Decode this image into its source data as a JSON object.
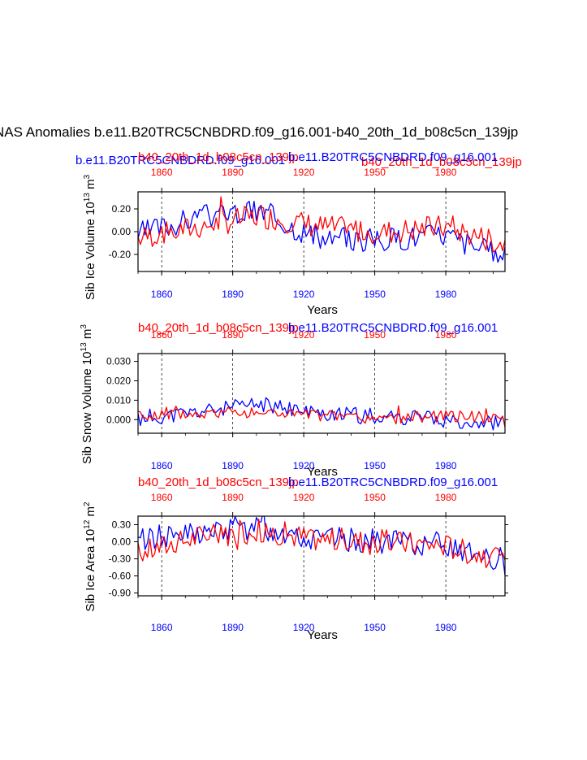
{
  "page": {
    "title": "NAS Anomalies b.e11.B20TRC5CNBDRD.f09_g16.001-b40_20th_1d_b08c5cn_139jp"
  },
  "colors": {
    "blue": "#0000ff",
    "red": "#ff0000"
  },
  "chart_data": [
    {
      "type": "line",
      "id": "ice-volume",
      "title_blue": "b.e11.B20TRC5CNBDRD.f09_g16.001",
      "title_red": "b40_20th_1d_b08c5cn_139jp",
      "top_title_red": "b40_20th_1d_b08c5cn_139jp",
      "top_title_blue": "b.e11.B20TRC5CNBDRD.f09_g16.001",
      "ylabel": "Sib Ice Volume 10^13 m^3",
      "ylabel_base": "Sib Ice Volume 10",
      "ylabel_exp": "13",
      "ylabel_unit": "m",
      "ylabel_unit_exp": "3",
      "xlabel": "Years",
      "xlim": [
        1850,
        2005
      ],
      "ylim": [
        -0.35,
        0.35
      ],
      "yticks": [
        -0.2,
        0.0,
        0.2
      ],
      "ytick_labels": [
        "-0.20",
        "0.00",
        "0.20"
      ],
      "xticks": [
        1860,
        1890,
        1920,
        1950,
        1980
      ],
      "xtick_labels": [
        "1860",
        "1890",
        "1920",
        "1950",
        "1980"
      ],
      "series": [
        {
          "name": "b.e11.B20TRC5CNBDRD.f09_g16.001",
          "color": "blue",
          "x_start": 1850,
          "amp": 0.11,
          "offset": -0.02,
          "seed": 3,
          "trend": [
            0.0,
            0.15,
            0.2,
            -0.05,
            -0.05,
            0.0,
            -0.22
          ]
        },
        {
          "name": "b40_20th_1d_b08c5cn_139jp",
          "color": "red",
          "x_start": 1850,
          "amp": 0.11,
          "offset": -0.01,
          "seed": 7,
          "trend": [
            -0.05,
            0.05,
            0.15,
            0.05,
            0.0,
            0.05,
            -0.1
          ]
        }
      ]
    },
    {
      "type": "line",
      "id": "snow-volume",
      "top_title_red": "b40_20th_1d_b08c5cn_139jp",
      "top_title_blue": "b.e11.B20TRC5CNBDRD.f09_g16.001",
      "ylabel": "Sib Snow Volume 10^13 m^3",
      "ylabel_base": "Sib Snow Volume 10",
      "ylabel_exp": "13",
      "ylabel_unit": "m",
      "ylabel_unit_exp": "3",
      "xlabel": "Years",
      "xlim": [
        1850,
        2005
      ],
      "ylim": [
        -0.007,
        0.034
      ],
      "yticks": [
        0.0,
        0.01,
        0.02,
        0.03
      ],
      "ytick_labels": [
        "0.000",
        "0.010",
        "0.020",
        "0.030"
      ],
      "xticks": [
        1860,
        1890,
        1920,
        1950,
        1980
      ],
      "xtick_labels": [
        "1860",
        "1890",
        "1920",
        "1950",
        "1980"
      ],
      "series": [
        {
          "name": "b.e11.B20TRC5CNBDRD.f09_g16.001",
          "color": "blue",
          "x_start": 1850,
          "amp": 0.004,
          "offset": 0.0,
          "seed": 11,
          "trend": [
            0.0,
            0.004,
            0.008,
            0.003,
            0.002,
            0.0,
            -0.002
          ]
        },
        {
          "name": "b40_20th_1d_b08c5cn_139jp",
          "color": "red",
          "x_start": 1850,
          "amp": 0.003,
          "offset": 0.0,
          "seed": 5,
          "trend": [
            0.002,
            0.003,
            0.004,
            0.002,
            0.0,
            0.002,
            0.001
          ]
        }
      ]
    },
    {
      "type": "line",
      "id": "ice-area",
      "top_title_red": "b40_20th_1d_b08c5cn_139jp",
      "top_title_blue": "b.e11.B20TRC5CNBDRD.f09_g16.001",
      "ylabel": "Sib Ice Area 10^12 m^2",
      "ylabel_base": "Sib Ice Area 10",
      "ylabel_exp": "12",
      "ylabel_unit": "m",
      "ylabel_unit_exp": "2",
      "xlabel": "Years",
      "xlim": [
        1850,
        2005
      ],
      "ylim": [
        -0.95,
        0.45
      ],
      "yticks": [
        -0.9,
        -0.6,
        -0.3,
        0.0,
        0.3
      ],
      "ytick_labels": [
        "-0.90",
        "-0.60",
        "-0.30",
        "0.00",
        "0.30"
      ],
      "xticks": [
        1860,
        1890,
        1920,
        1950,
        1980
      ],
      "xtick_labels": [
        "1860",
        "1890",
        "1920",
        "1950",
        "1980"
      ],
      "series": [
        {
          "name": "b.e11.B20TRC5CNBDRD.f09_g16.001",
          "color": "blue",
          "x_start": 1850,
          "amp": 0.22,
          "offset": 0.0,
          "seed": 13,
          "trend": [
            0.05,
            0.15,
            0.25,
            0.05,
            0.0,
            -0.05,
            -0.45
          ]
        },
        {
          "name": "b40_20th_1d_b08c5cn_139jp",
          "color": "red",
          "x_start": 1850,
          "amp": 0.22,
          "offset": 0.0,
          "seed": 17,
          "trend": [
            -0.2,
            0.1,
            0.2,
            0.05,
            0.0,
            -0.05,
            -0.35
          ]
        }
      ]
    }
  ]
}
